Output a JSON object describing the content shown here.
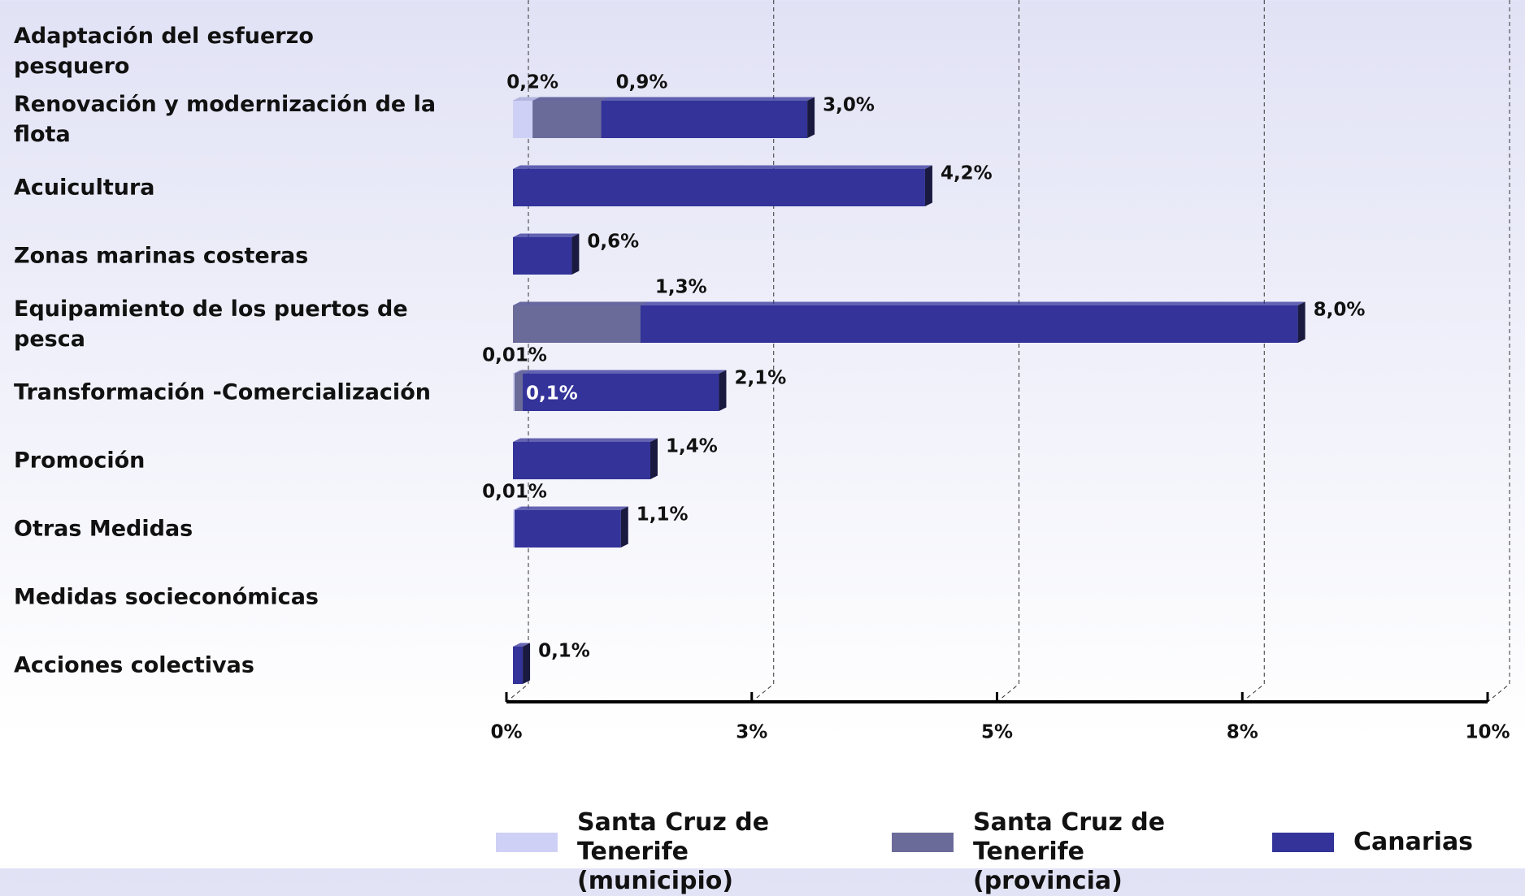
{
  "chart_data": {
    "type": "bar",
    "orientation": "horizontal",
    "categories": [
      "Adaptación del esfuerzo pesquero",
      "Renovación y modernización de la flota",
      "Acuicultura",
      "Zonas marinas costeras",
      "Equipamiento de los puertos de pesca",
      "Transformación -Comercialización",
      "Promoción",
      "Otras Medidas",
      "Medidas socieconómicas",
      "Acciones colectivas"
    ],
    "series": [
      {
        "name": "Canarias",
        "color": "#33339a",
        "values": [
          null,
          3.0,
          4.2,
          0.6,
          8.0,
          2.1,
          1.4,
          1.1,
          null,
          0.1
        ],
        "value_labels": [
          null,
          "3,0%",
          "4,2%",
          "0,6%",
          "8,0%",
          "2,1%",
          "1,4%",
          "1,1%",
          null,
          "0,1%"
        ]
      },
      {
        "name": "Santa Cruz de Tenerife (provincia)",
        "color": "#6b6b9a",
        "values": [
          null,
          0.9,
          null,
          null,
          1.3,
          0.1,
          null,
          null,
          null,
          null
        ],
        "value_labels": [
          null,
          "0,9%",
          null,
          null,
          "1,3%",
          "0,1%",
          null,
          null,
          null,
          null
        ]
      },
      {
        "name": "Santa Cruz de Tenerife (municipio)",
        "color": "#cfd0f5",
        "values": [
          null,
          0.2,
          null,
          null,
          null,
          0.01,
          null,
          0.01,
          null,
          null
        ],
        "value_labels": [
          null,
          "0,2%",
          null,
          null,
          null,
          "0,01%",
          null,
          "0,01%",
          null,
          null
        ]
      }
    ],
    "legend_order": [
      2,
      1,
      0
    ],
    "xlim": [
      0,
      10
    ],
    "xticks": [
      {
        "value": 0,
        "label": "0%"
      },
      {
        "value": 2.5,
        "label": "3%"
      },
      {
        "value": 5,
        "label": "5%"
      },
      {
        "value": 7.5,
        "label": "8%"
      },
      {
        "value": 10,
        "label": "10%"
      }
    ],
    "grid": true
  }
}
